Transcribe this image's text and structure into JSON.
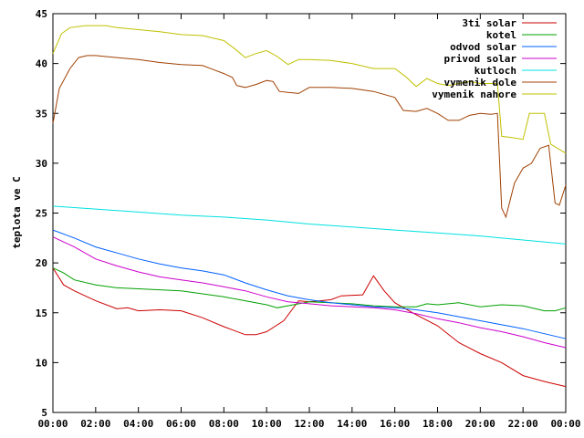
{
  "chart_data": {
    "type": "line",
    "title": "",
    "xlabel": "",
    "ylabel": "teplota ve C",
    "ylim": [
      5,
      45
    ],
    "yticks": [
      5,
      10,
      15,
      20,
      25,
      30,
      35,
      40,
      45
    ],
    "xlim": [
      0,
      24
    ],
    "xticks": [
      {
        "x": 0,
        "label": "00:00"
      },
      {
        "x": 2,
        "label": "02:00"
      },
      {
        "x": 4,
        "label": "04:00"
      },
      {
        "x": 6,
        "label": "06:00"
      },
      {
        "x": 8,
        "label": "08:00"
      },
      {
        "x": 10,
        "label": "10:00"
      },
      {
        "x": 12,
        "label": "12:00"
      },
      {
        "x": 14,
        "label": "14:00"
      },
      {
        "x": 16,
        "label": "16:00"
      },
      {
        "x": 18,
        "label": "18:00"
      },
      {
        "x": 20,
        "label": "20:00"
      },
      {
        "x": 22,
        "label": "22:00"
      },
      {
        "x": 24,
        "label": "00:00"
      }
    ],
    "grid": false,
    "legend_position": "top-right",
    "series": [
      {
        "name": "3ti solar",
        "color": "#cc0000",
        "points": [
          [
            0,
            19.5
          ],
          [
            0.5,
            17.8
          ],
          [
            1,
            17.2
          ],
          [
            2,
            16.2
          ],
          [
            3,
            15.4
          ],
          [
            3.5,
            15.5
          ],
          [
            4,
            15.2
          ],
          [
            5,
            15.3
          ],
          [
            6,
            15.2
          ],
          [
            7,
            14.5
          ],
          [
            8,
            13.6
          ],
          [
            9,
            12.8
          ],
          [
            9.5,
            12.8
          ],
          [
            10,
            13.1
          ],
          [
            10.8,
            14.2
          ],
          [
            11.5,
            16.2
          ],
          [
            12,
            16.1
          ],
          [
            13,
            16.3
          ],
          [
            13.5,
            16.7
          ],
          [
            14.5,
            16.8
          ],
          [
            15,
            18.7
          ],
          [
            15.5,
            17.2
          ],
          [
            16,
            16.0
          ],
          [
            17,
            14.8
          ],
          [
            18,
            13.7
          ],
          [
            19,
            12.0
          ],
          [
            20,
            10.9
          ],
          [
            21,
            10.0
          ],
          [
            22,
            8.7
          ],
          [
            23,
            8.1
          ],
          [
            24,
            7.6
          ]
        ]
      },
      {
        "name": "kotel",
        "color": "#00a000",
        "points": [
          [
            0,
            19.5
          ],
          [
            0.5,
            19.0
          ],
          [
            1,
            18.3
          ],
          [
            2,
            17.8
          ],
          [
            3,
            17.5
          ],
          [
            4,
            17.4
          ],
          [
            5,
            17.3
          ],
          [
            6,
            17.2
          ],
          [
            7,
            16.9
          ],
          [
            8,
            16.6
          ],
          [
            9,
            16.2
          ],
          [
            10,
            15.8
          ],
          [
            10.5,
            15.5
          ],
          [
            11,
            15.7
          ],
          [
            12,
            16.1
          ],
          [
            13,
            16.0
          ],
          [
            14,
            15.9
          ],
          [
            15,
            15.7
          ],
          [
            16,
            15.6
          ],
          [
            17,
            15.6
          ],
          [
            17.5,
            15.9
          ],
          [
            18,
            15.8
          ],
          [
            19,
            16.0
          ],
          [
            20,
            15.6
          ],
          [
            21,
            15.8
          ],
          [
            22,
            15.7
          ],
          [
            23,
            15.2
          ],
          [
            23.5,
            15.2
          ],
          [
            24,
            15.5
          ]
        ]
      },
      {
        "name": "odvod solar",
        "color": "#0060ff",
        "points": [
          [
            0,
            23.3
          ],
          [
            1,
            22.5
          ],
          [
            2,
            21.6
          ],
          [
            3,
            21.0
          ],
          [
            4,
            20.4
          ],
          [
            5,
            19.9
          ],
          [
            6,
            19.5
          ],
          [
            7,
            19.2
          ],
          [
            8,
            18.8
          ],
          [
            9,
            18.0
          ],
          [
            10,
            17.3
          ],
          [
            11,
            16.7
          ],
          [
            12,
            16.3
          ],
          [
            13,
            16.0
          ],
          [
            14,
            15.8
          ],
          [
            15,
            15.6
          ],
          [
            16,
            15.5
          ],
          [
            17,
            15.3
          ],
          [
            18,
            15.0
          ],
          [
            19,
            14.6
          ],
          [
            20,
            14.2
          ],
          [
            21,
            13.8
          ],
          [
            22,
            13.4
          ],
          [
            23,
            12.9
          ],
          [
            24,
            12.4
          ]
        ]
      },
      {
        "name": "privod solar",
        "color": "#cc00cc",
        "points": [
          [
            0,
            22.6
          ],
          [
            1,
            21.6
          ],
          [
            2,
            20.4
          ],
          [
            3,
            19.7
          ],
          [
            4,
            19.1
          ],
          [
            5,
            18.6
          ],
          [
            6,
            18.3
          ],
          [
            7,
            18.0
          ],
          [
            8,
            17.6
          ],
          [
            9,
            17.2
          ],
          [
            10,
            16.6
          ],
          [
            11,
            16.1
          ],
          [
            12,
            15.9
          ],
          [
            13,
            15.7
          ],
          [
            14,
            15.6
          ],
          [
            15,
            15.5
          ],
          [
            16,
            15.3
          ],
          [
            17,
            14.9
          ],
          [
            18,
            14.4
          ],
          [
            19,
            14.0
          ],
          [
            20,
            13.5
          ],
          [
            21,
            13.1
          ],
          [
            22,
            12.6
          ],
          [
            23,
            12.0
          ],
          [
            24,
            11.5
          ]
        ]
      },
      {
        "name": "kutloch",
        "color": "#00e0e0",
        "points": [
          [
            0,
            25.7
          ],
          [
            2,
            25.4
          ],
          [
            4,
            25.1
          ],
          [
            6,
            24.8
          ],
          [
            8,
            24.6
          ],
          [
            10,
            24.3
          ],
          [
            12,
            23.9
          ],
          [
            14,
            23.6
          ],
          [
            16,
            23.3
          ],
          [
            18,
            23.0
          ],
          [
            20,
            22.7
          ],
          [
            22,
            22.3
          ],
          [
            24,
            21.9
          ]
        ]
      },
      {
        "name": "vymenik dole",
        "color": "#a04000",
        "points": [
          [
            0,
            34.0
          ],
          [
            0.3,
            37.5
          ],
          [
            0.8,
            39.5
          ],
          [
            1.2,
            40.6
          ],
          [
            1.6,
            40.8
          ],
          [
            2,
            40.8
          ],
          [
            3,
            40.6
          ],
          [
            4,
            40.4
          ],
          [
            5,
            40.1
          ],
          [
            6,
            39.9
          ],
          [
            7,
            39.8
          ],
          [
            7.5,
            39.4
          ],
          [
            8,
            39.0
          ],
          [
            8.4,
            38.6
          ],
          [
            8.6,
            37.8
          ],
          [
            9,
            37.6
          ],
          [
            9.5,
            37.9
          ],
          [
            10,
            38.3
          ],
          [
            10.3,
            38.2
          ],
          [
            10.6,
            37.2
          ],
          [
            11,
            37.1
          ],
          [
            11.5,
            37.0
          ],
          [
            12,
            37.6
          ],
          [
            13,
            37.6
          ],
          [
            14,
            37.5
          ],
          [
            15,
            37.2
          ],
          [
            16,
            36.6
          ],
          [
            16.4,
            35.3
          ],
          [
            17,
            35.2
          ],
          [
            17.5,
            35.5
          ],
          [
            18,
            35.0
          ],
          [
            18.5,
            34.3
          ],
          [
            19,
            34.3
          ],
          [
            19.5,
            34.8
          ],
          [
            20,
            35.0
          ],
          [
            20.5,
            34.9
          ],
          [
            20.8,
            35.0
          ],
          [
            21,
            25.5
          ],
          [
            21.2,
            24.6
          ],
          [
            21.6,
            28.0
          ],
          [
            22,
            29.5
          ],
          [
            22.4,
            30.0
          ],
          [
            22.8,
            31.5
          ],
          [
            23.2,
            31.8
          ],
          [
            23.5,
            26.0
          ],
          [
            23.7,
            25.8
          ],
          [
            24,
            27.8
          ]
        ]
      },
      {
        "name": "vymenik nahore",
        "color": "#c0c000",
        "points": [
          [
            0,
            41.0
          ],
          [
            0.4,
            43.0
          ],
          [
            0.8,
            43.6
          ],
          [
            1.5,
            43.8
          ],
          [
            2.5,
            43.8
          ],
          [
            3,
            43.6
          ],
          [
            4,
            43.4
          ],
          [
            5,
            43.2
          ],
          [
            6,
            42.9
          ],
          [
            7,
            42.8
          ],
          [
            8,
            42.3
          ],
          [
            8.5,
            41.5
          ],
          [
            9,
            40.6
          ],
          [
            9.5,
            41.0
          ],
          [
            10,
            41.3
          ],
          [
            10.5,
            40.7
          ],
          [
            11,
            39.9
          ],
          [
            11.5,
            40.4
          ],
          [
            12,
            40.4
          ],
          [
            13,
            40.3
          ],
          [
            14,
            40.0
          ],
          [
            15,
            39.5
          ],
          [
            16,
            39.5
          ],
          [
            16.5,
            38.7
          ],
          [
            17,
            37.7
          ],
          [
            17.5,
            38.5
          ],
          [
            18,
            38.0
          ],
          [
            18.5,
            37.8
          ],
          [
            19,
            38.0
          ],
          [
            19.5,
            38.2
          ],
          [
            20,
            38.0
          ],
          [
            20.8,
            38.0
          ],
          [
            21,
            32.7
          ],
          [
            21.4,
            32.6
          ],
          [
            22,
            32.4
          ],
          [
            22.3,
            35.0
          ],
          [
            23,
            35.0
          ],
          [
            23.3,
            31.9
          ],
          [
            24,
            31.0
          ]
        ]
      }
    ]
  }
}
